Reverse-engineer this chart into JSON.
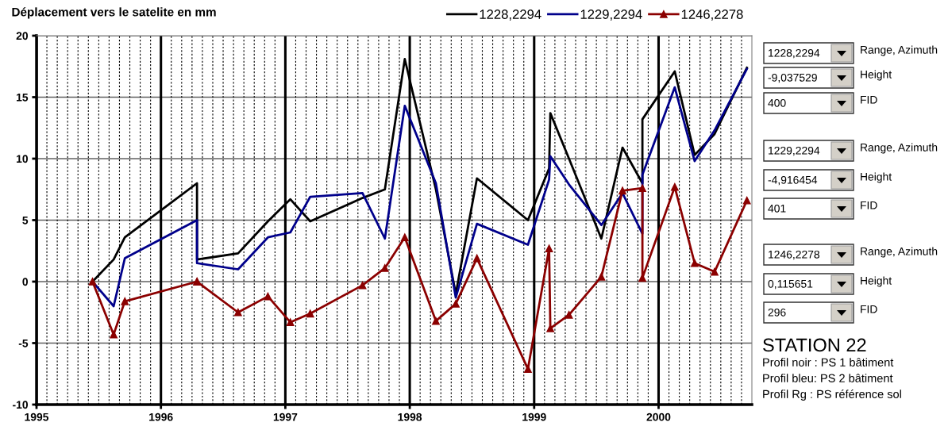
{
  "chart_data": {
    "type": "line",
    "title": "Déplacement vers le satelite en mm",
    "x": [
      1995.45,
      1995.62,
      1995.71,
      1996.29,
      1996.29,
      1996.62,
      1996.86,
      1997.04,
      1997.2,
      1997.62,
      1997.8,
      1997.96,
      1998.21,
      1998.37,
      1998.54,
      1998.95,
      1999.12,
      1999.13,
      1999.28,
      1999.54,
      1999.71,
      1999.87,
      1999.87,
      2000.13,
      2000.29,
      2000.45,
      2000.71
    ],
    "series": [
      {
        "name": "1228,2294",
        "color": "#000000",
        "marker": "none",
        "values": [
          0,
          1.8,
          3.6,
          8.0,
          1.8,
          2.3,
          4.9,
          6.7,
          4.9,
          6.8,
          7.5,
          18.1,
          7.5,
          -1.0,
          8.4,
          5.0,
          9.2,
          13.7,
          10.0,
          3.5,
          10.9,
          8.0,
          13.2,
          17.1,
          10.3,
          12.0,
          17.4
        ]
      },
      {
        "name": "1229,2294",
        "color": "#00008b",
        "marker": "none",
        "values": [
          0,
          -2.0,
          1.9,
          5.0,
          1.5,
          1.0,
          3.6,
          4.0,
          6.9,
          7.2,
          3.5,
          14.3,
          8.0,
          -1.3,
          4.7,
          3.0,
          8.3,
          10.2,
          7.9,
          4.6,
          7.2,
          3.9,
          8.7,
          15.8,
          9.8,
          12.3,
          17.3
        ]
      },
      {
        "name": "1246,2278",
        "color": "#8b0000",
        "marker": "triangle",
        "values": [
          0,
          -4.3,
          -1.6,
          0,
          0,
          -2.5,
          -1.2,
          -3.3,
          -2.6,
          -0.3,
          1.1,
          3.6,
          -3.2,
          -1.8,
          1.9,
          -7.1,
          2.7,
          -3.8,
          -2.7,
          0.4,
          7.4,
          7.6,
          0.3,
          7.7,
          1.5,
          0.8,
          6.6
        ]
      }
    ],
    "xlim": [
      1995,
      2000.75
    ],
    "xticks": [
      1995,
      1996,
      1997,
      1998,
      1999,
      2000
    ],
    "ylim": [
      -10,
      20
    ],
    "yticks": [
      -10,
      -5,
      0,
      5,
      10,
      15,
      20
    ],
    "grid": true,
    "legend": "top right",
    "line_style": "solid",
    "annotations": [
      "1228,2294",
      "Range, Azimuth",
      "-9,037529",
      "Height",
      "400",
      "FID",
      "1229,2294",
      "Range, Azimuth",
      "-4,916454",
      "Height",
      "401",
      "FID",
      "1246,2278",
      "Range, Azimuth",
      "0,115651",
      "Height",
      "296",
      "FID",
      "STATION 22",
      "Profil noir : PS 1 bâtiment",
      "Profil bleu: PS 2 bâtiment",
      "Profil Rg : PS référence sol"
    ]
  }
}
